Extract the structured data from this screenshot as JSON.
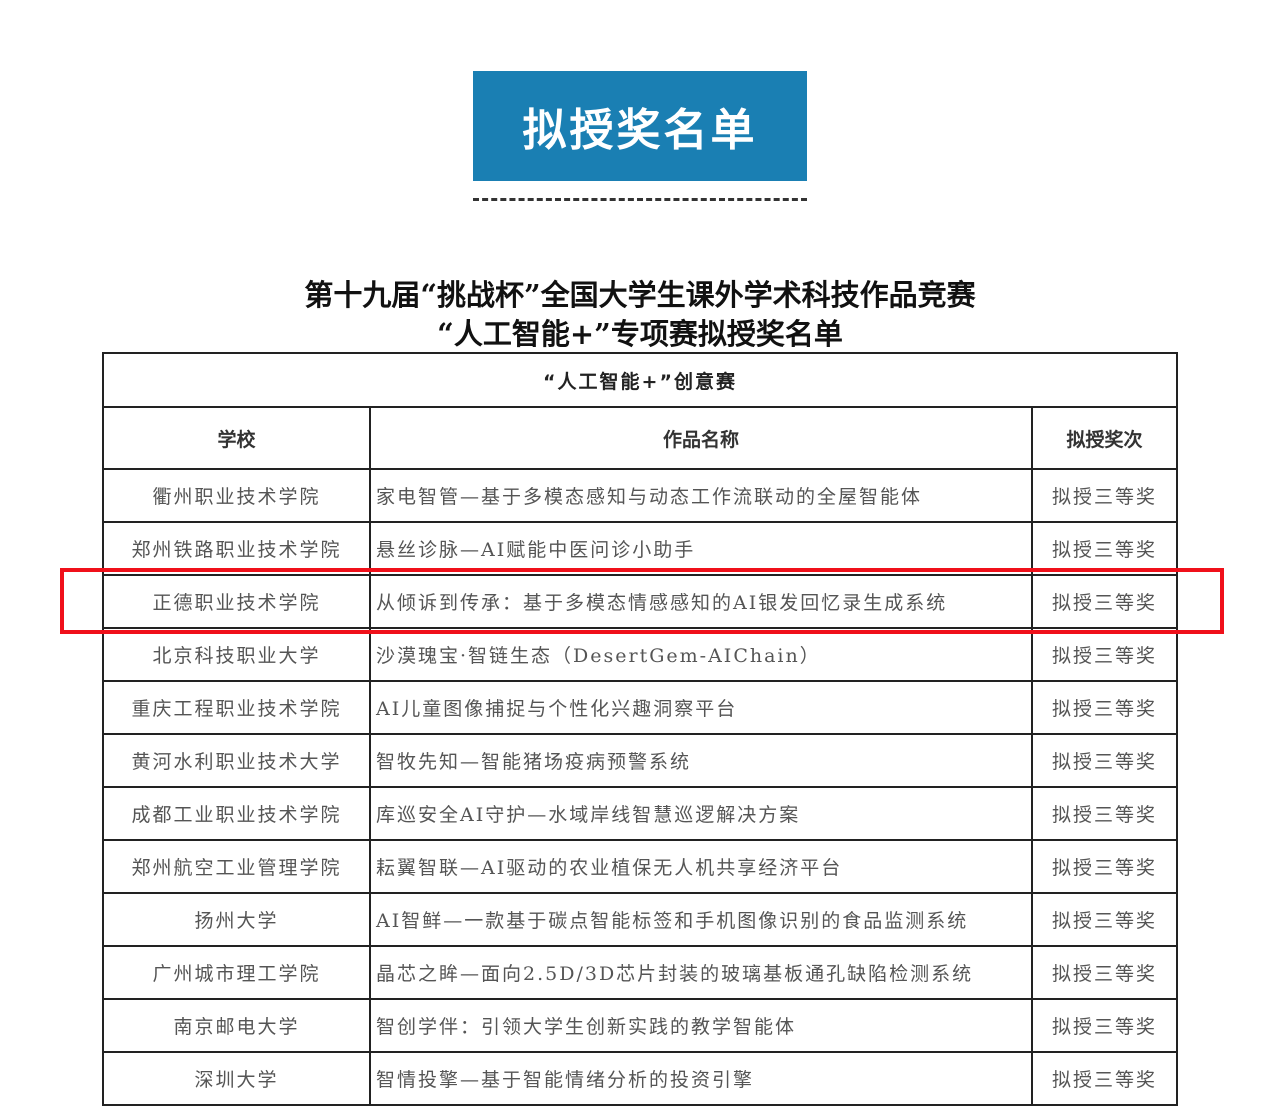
{
  "banner": "拟授奖名单",
  "title_line1": "第十九届“挑战杯”全国大学生课外学术科技作品竞赛",
  "title_line2": "“人工智能+”专项赛拟授奖名单",
  "table": {
    "caption": "“人工智能+”创意赛",
    "headers": [
      "学校",
      "作品名称",
      "拟授奖次"
    ],
    "rows": [
      [
        "衢州职业技术学院",
        "家电智管—基于多模态感知与动态工作流联动的全屋智能体",
        "拟授三等奖"
      ],
      [
        "郑州铁路职业技术学院",
        "悬丝诊脉—AI赋能中医问诊小助手",
        "拟授三等奖"
      ],
      [
        "正德职业技术学院",
        "从倾诉到传承：基于多模态情感感知的AI银发回忆录生成系统",
        "拟授三等奖"
      ],
      [
        "北京科技职业大学",
        "沙漠瑰宝·智链生态（DesertGem-AIChain）",
        "拟授三等奖"
      ],
      [
        "重庆工程职业技术学院",
        "AI儿童图像捕捉与个性化兴趣洞察平台",
        "拟授三等奖"
      ],
      [
        "黄河水利职业技术大学",
        "智牧先知—智能猪场疫病预警系统",
        "拟授三等奖"
      ],
      [
        "成都工业职业技术学院",
        "库巡安全AI守护—水域岸线智慧巡逻解决方案",
        "拟授三等奖"
      ],
      [
        "郑州航空工业管理学院",
        "耘翼智联—AI驱动的农业植保无人机共享经济平台",
        "拟授三等奖"
      ],
      [
        "扬州大学",
        "AI智鲜—一款基于碳点智能标签和手机图像识别的食品监测系统",
        "拟授三等奖"
      ],
      [
        "广州城市理工学院",
        "晶芯之眸—面向2.5D/3D芯片封装的玻璃基板通孔缺陷检测系统",
        "拟授三等奖"
      ],
      [
        "南京邮电大学",
        "智创学伴：引领大学生创新实践的教学智能体",
        "拟授三等奖"
      ],
      [
        "深圳大学",
        "智情投擎—基于智能情绪分析的投资引擎",
        "拟授三等奖"
      ]
    ]
  },
  "highlight_color": "#f0101a",
  "banner_color": "#1a7fb3"
}
